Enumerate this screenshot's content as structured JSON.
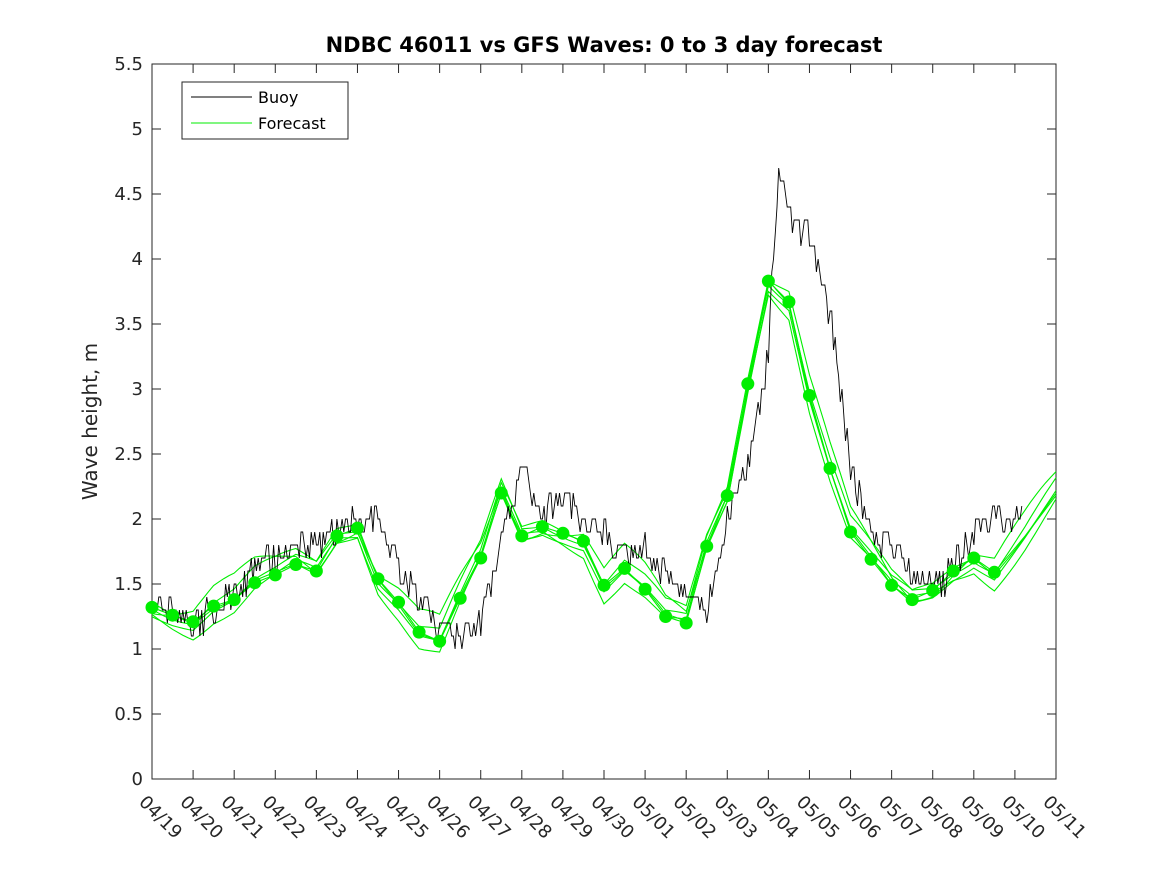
{
  "chart_data": {
    "type": "line",
    "title": "NDBC 46011 vs GFS Waves: 0 to 3 day forecast",
    "xlabel": "",
    "ylabel": "Wave height, m",
    "ylim": [
      0,
      5.5
    ],
    "yticks": [
      "0",
      "0.5",
      "1",
      "1.5",
      "2",
      "2.5",
      "3",
      "3.5",
      "4",
      "4.5",
      "5",
      "5.5"
    ],
    "xlim": [
      0,
      22
    ],
    "xticks": [
      "04/19",
      "04/20",
      "04/21",
      "04/22",
      "04/23",
      "04/24",
      "04/25",
      "04/26",
      "04/27",
      "04/28",
      "04/29",
      "04/30",
      "05/01",
      "05/02",
      "05/03",
      "05/04",
      "05/05",
      "05/06",
      "05/07",
      "05/08",
      "05/09",
      "05/10",
      "05/11"
    ],
    "grid": false,
    "legend": {
      "placement": "top-left",
      "entries": [
        "Buoy",
        "Forecast"
      ]
    },
    "colors": {
      "buoy": "#000000",
      "forecast": "#00ee00"
    },
    "buoy_anchor_points": [
      [
        0.0,
        1.3
      ],
      [
        0.5,
        1.3
      ],
      [
        1.0,
        1.2
      ],
      [
        1.5,
        1.3
      ],
      [
        2.0,
        1.4
      ],
      [
        2.5,
        1.6
      ],
      [
        3.0,
        1.7
      ],
      [
        3.5,
        1.8
      ],
      [
        4.0,
        1.8
      ],
      [
        4.5,
        1.9
      ],
      [
        5.0,
        2.0
      ],
      [
        5.5,
        2.0
      ],
      [
        6.0,
        1.6
      ],
      [
        6.5,
        1.4
      ],
      [
        7.0,
        1.2
      ],
      [
        7.5,
        1.1
      ],
      [
        8.0,
        1.2
      ],
      [
        8.5,
        1.8
      ],
      [
        9.0,
        2.4
      ],
      [
        9.5,
        2.0
      ],
      [
        10.0,
        2.2
      ],
      [
        10.5,
        2.0
      ],
      [
        11.0,
        1.9
      ],
      [
        11.5,
        1.7
      ],
      [
        12.0,
        1.8
      ],
      [
        12.5,
        1.6
      ],
      [
        13.0,
        1.4
      ],
      [
        13.5,
        1.3
      ],
      [
        14.0,
        2.0
      ],
      [
        14.5,
        2.4
      ],
      [
        15.0,
        3.3
      ],
      [
        15.25,
        4.7
      ],
      [
        15.5,
        4.3
      ],
      [
        16.0,
        4.2
      ],
      [
        16.5,
        3.6
      ],
      [
        17.0,
        2.4
      ],
      [
        17.5,
        1.9
      ],
      [
        18.0,
        1.8
      ],
      [
        18.5,
        1.6
      ],
      [
        19.0,
        1.5
      ],
      [
        19.5,
        1.6
      ],
      [
        20.0,
        1.9
      ],
      [
        20.5,
        2.0
      ],
      [
        21.0,
        2.0
      ],
      [
        21.2,
        2.0
      ]
    ],
    "forecast_markers": [
      [
        0.0,
        1.32
      ],
      [
        0.5,
        1.26
      ],
      [
        1.0,
        1.21
      ],
      [
        1.5,
        1.33
      ],
      [
        2.0,
        1.38
      ],
      [
        2.5,
        1.51
      ],
      [
        3.0,
        1.57
      ],
      [
        3.5,
        1.65
      ],
      [
        4.0,
        1.6
      ],
      [
        4.5,
        1.87
      ],
      [
        5.0,
        1.93
      ],
      [
        5.5,
        1.54
      ],
      [
        6.0,
        1.36
      ],
      [
        6.5,
        1.13
      ],
      [
        7.0,
        1.06
      ],
      [
        7.5,
        1.39
      ],
      [
        8.0,
        1.7
      ],
      [
        8.5,
        2.2
      ],
      [
        9.0,
        1.87
      ],
      [
        9.5,
        1.94
      ],
      [
        10.0,
        1.89
      ],
      [
        10.5,
        1.83
      ],
      [
        11.0,
        1.49
      ],
      [
        11.5,
        1.62
      ],
      [
        12.0,
        1.46
      ],
      [
        12.5,
        1.25
      ],
      [
        13.0,
        1.2
      ],
      [
        13.5,
        1.79
      ],
      [
        14.0,
        2.18
      ],
      [
        14.5,
        3.04
      ],
      [
        15.0,
        3.83
      ],
      [
        15.5,
        3.67
      ],
      [
        16.0,
        2.95
      ],
      [
        16.5,
        2.39
      ],
      [
        17.0,
        1.9
      ],
      [
        17.5,
        1.69
      ],
      [
        18.0,
        1.49
      ],
      [
        18.5,
        1.38
      ],
      [
        19.0,
        1.45
      ],
      [
        19.5,
        1.6
      ],
      [
        20.0,
        1.7
      ],
      [
        20.5,
        1.59
      ]
    ]
  }
}
